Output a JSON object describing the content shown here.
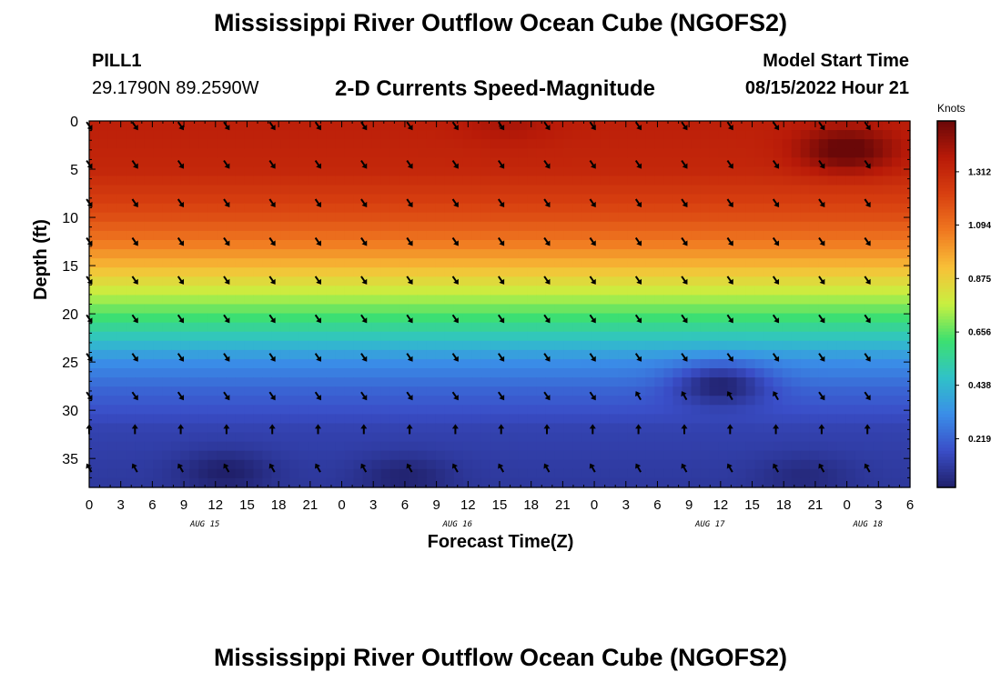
{
  "header": {
    "title": "Mississippi River Outflow Ocean Cube (NGOFS2)",
    "station": "PILL1",
    "coordinates": "29.1790N  89.2590W",
    "subtitle": "2-D Currents Speed-Magnitude",
    "start_label": "Model Start Time",
    "start_value": "08/15/2022 Hour 21"
  },
  "footer": {
    "title": "Mississippi River Outflow Ocean Cube (NGOFS2)"
  },
  "chart_data": {
    "type": "heatmap",
    "title": "2-D Currents Speed-Magnitude",
    "xlabel": "Forecast Time(Z)",
    "ylabel": "Depth (ft)",
    "x_tick_labels": [
      "0",
      "3",
      "6",
      "9",
      "12",
      "15",
      "18",
      "21",
      "0",
      "3",
      "6",
      "9",
      "12",
      "15",
      "18",
      "21",
      "0",
      "3",
      "6",
      "9",
      "12",
      "15",
      "18",
      "21",
      "0",
      "3",
      "6"
    ],
    "x_hours": [
      0,
      3,
      6,
      9,
      12,
      15,
      18,
      21,
      24,
      27,
      30,
      33,
      36,
      39,
      42,
      45,
      48,
      51,
      54,
      57,
      60,
      63,
      66,
      69,
      72,
      75,
      78
    ],
    "date_labels": [
      {
        "label": "AUG 15",
        "hour": 11
      },
      {
        "label": "AUG 16",
        "hour": 35
      },
      {
        "label": "AUG 17",
        "hour": 59
      },
      {
        "label": "AUG 18",
        "hour": 74
      }
    ],
    "xlim": [
      0,
      78
    ],
    "y_ticks": [
      0,
      5,
      10,
      15,
      20,
      25,
      30,
      35
    ],
    "ylim": [
      0,
      38
    ],
    "y_inverted": true,
    "colorbar": {
      "unit": "Knots",
      "ticks": [
        0.219,
        0.438,
        0.656,
        0.875,
        1.094,
        1.312
      ],
      "range": [
        0.02,
        1.52
      ],
      "colors": [
        "#20206a",
        "#3a4ec8",
        "#3a8ee8",
        "#30c2c8",
        "#3ce070",
        "#c8f040",
        "#f8c038",
        "#f07820",
        "#d84010",
        "#b81a08",
        "#6a0808"
      ]
    },
    "speed_profile_by_depth_ft": [
      {
        "depth": 0,
        "speed": 1.35
      },
      {
        "depth": 5,
        "speed": 1.32
      },
      {
        "depth": 10,
        "speed": 1.18
      },
      {
        "depth": 13,
        "speed": 1.05
      },
      {
        "depth": 15,
        "speed": 0.94
      },
      {
        "depth": 17,
        "speed": 0.82
      },
      {
        "depth": 19,
        "speed": 0.7
      },
      {
        "depth": 21,
        "speed": 0.58
      },
      {
        "depth": 23,
        "speed": 0.45
      },
      {
        "depth": 25,
        "speed": 0.32
      },
      {
        "depth": 28,
        "speed": 0.22
      },
      {
        "depth": 32,
        "speed": 0.13
      },
      {
        "depth": 38,
        "speed": 0.1
      }
    ],
    "local_features": [
      {
        "name": "surface max",
        "hour": 72,
        "depth": 3,
        "speed": 1.55
      },
      {
        "name": "surface high",
        "hour": 40,
        "depth": 0,
        "speed": 1.4
      },
      {
        "name": "mid-depth low",
        "hour": 60,
        "depth": 27.5,
        "speed": 0.03
      },
      {
        "name": "bottom low",
        "hour": 13,
        "depth": 36.5,
        "speed": 0.02
      },
      {
        "name": "bottom low",
        "hour": 30,
        "depth": 37,
        "speed": 0.03
      },
      {
        "name": "bottom low",
        "hour": 68,
        "depth": 37,
        "speed": 0.05
      }
    ],
    "vector_rows": [
      {
        "depth": 0.5,
        "direction": "SE"
      },
      {
        "depth": 4.5,
        "direction": "SE"
      },
      {
        "depth": 8.5,
        "direction": "SE"
      },
      {
        "depth": 12.5,
        "direction": "SE"
      },
      {
        "depth": 16.5,
        "direction": "SE"
      },
      {
        "depth": 20.5,
        "direction": "SE"
      },
      {
        "depth": 24.5,
        "direction": "SE"
      },
      {
        "depth": 28.5,
        "direction": "SE"
      },
      {
        "depth": 32,
        "direction": "N"
      },
      {
        "depth": 36,
        "direction": "NW"
      }
    ]
  }
}
